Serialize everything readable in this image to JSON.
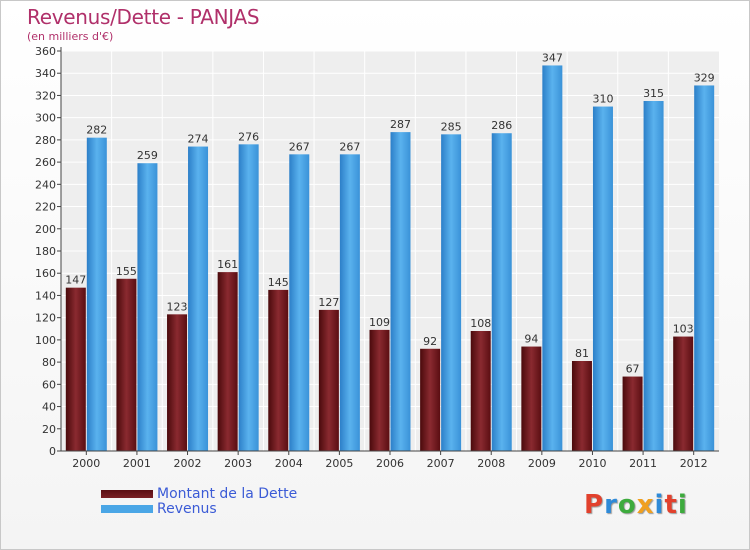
{
  "chart_data": {
    "type": "bar",
    "title": "Revenus/Dette - PANJAS",
    "subtitle": "(en milliers d'€)",
    "categories": [
      "2000",
      "2001",
      "2002",
      "2003",
      "2004",
      "2005",
      "2006",
      "2007",
      "2008",
      "2009",
      "2010",
      "2011",
      "2012"
    ],
    "series": [
      {
        "name": "Montant de la Dette",
        "color": "#7a1f24",
        "values": [
          147,
          155,
          123,
          161,
          145,
          127,
          109,
          92,
          108,
          94,
          81,
          67,
          103
        ]
      },
      {
        "name": "Revenus",
        "color": "#4aa6e6",
        "values": [
          282,
          259,
          274,
          276,
          267,
          267,
          287,
          285,
          286,
          347,
          310,
          315,
          329
        ]
      }
    ],
    "ylim": [
      0,
      360
    ],
    "ytick_step": 20,
    "grid": true,
    "legend": "bottom-left"
  },
  "logo": {
    "text": "Proxiti",
    "letter_colors": [
      "#e2412d",
      "#2e8ad8",
      "#3dab3d",
      "#f0a020",
      "#2e8ad8",
      "#e2412d",
      "#3dab3d"
    ]
  }
}
